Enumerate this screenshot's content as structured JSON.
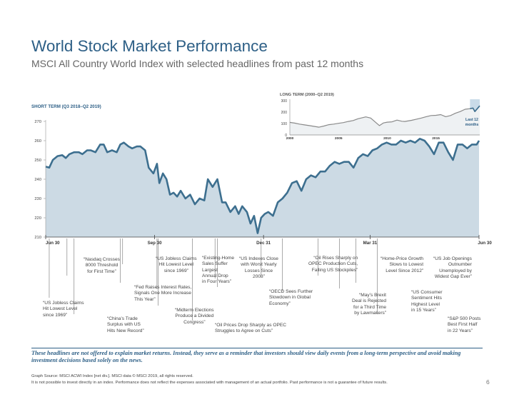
{
  "header": {
    "title": "World Stock Market Performance",
    "subtitle": "MSCI All Country World Index with selected headlines from past 12 months"
  },
  "chart_data": [
    {
      "type": "area",
      "title": "SHORT TERM (Q3 2018–Q2 2019)",
      "x_tick_labels": [
        "Jun 30",
        "Sep 30",
        "Dec 31",
        "Mar 31",
        "Jun 30"
      ],
      "y_ticks": [
        210,
        220,
        230,
        240,
        250,
        260,
        270
      ],
      "ylim": [
        210,
        270
      ],
      "grid": false,
      "series": [
        {
          "name": "MSCI ACWI Index",
          "x_days": [
            0,
            3,
            6,
            10,
            14,
            17,
            20,
            24,
            28,
            31,
            35,
            38,
            42,
            46,
            49,
            52,
            56,
            60,
            63,
            66,
            70,
            73,
            77,
            80,
            84,
            87,
            91,
            94,
            96,
            99,
            102,
            105,
            108,
            111,
            114,
            118,
            122,
            126,
            130,
            134,
            137,
            141,
            145,
            149,
            152,
            156,
            160,
            163,
            166,
            170,
            173,
            176,
            179,
            182,
            185,
            188,
            192,
            196,
            200,
            204,
            208,
            212,
            216,
            220,
            224,
            228,
            232,
            236,
            240,
            244,
            248,
            252,
            256,
            260,
            264,
            268,
            272,
            276,
            280,
            284,
            288,
            292,
            296,
            300,
            304,
            308,
            312,
            316,
            320,
            324,
            328,
            332,
            336,
            340,
            344,
            348,
            352,
            356,
            360,
            364,
            366
          ],
          "values": [
            246.5,
            246,
            250,
            252,
            252.5,
            251,
            253,
            254,
            254,
            253,
            255,
            255,
            254,
            258,
            258,
            254,
            255,
            254,
            258,
            259,
            257,
            256,
            257,
            257,
            255,
            246,
            243,
            248,
            238,
            243,
            240,
            232,
            233,
            231,
            234,
            230,
            232,
            227,
            230,
            229,
            240,
            236,
            240,
            228,
            228,
            223,
            226,
            222,
            226,
            223,
            217,
            221,
            212,
            220,
            222,
            223,
            221,
            228,
            230,
            233,
            238,
            239,
            234,
            240,
            242,
            241,
            244,
            244,
            247,
            249,
            248,
            249,
            249,
            246,
            251,
            253,
            252,
            255,
            256,
            258,
            259,
            258,
            258,
            260,
            259,
            260,
            259,
            261,
            260,
            257,
            253,
            259,
            259,
            254,
            250,
            258,
            258,
            256,
            258,
            258,
            260
          ],
          "color": "#3d6f8f",
          "fill": "#ccdae4"
        }
      ],
      "headlines": [
        {
          "text": "“US Jobless Claims\nHit Lowest Level\nsince 1969”"
        },
        {
          "text": "“Nasdaq Crosses\n8000 Threshold\nfor First Time”"
        },
        {
          "text": "“China’s Trade\nSurplus with US\nHits New Record”"
        },
        {
          "text": "“Fed Raises Interest Rates,\nSignals One More Increase\nThis Year”"
        },
        {
          "text": "“US Jobless Claims\nHit Lowest Level\nsince 1969”"
        },
        {
          "text": "“Midterm Elections\nProduce a Divided\nCongress”"
        },
        {
          "text": "“Existing-Home\nSales Suffer\nLargest\nAnnual Drop\nin Four Years”"
        },
        {
          "text": "“Oil Prices Drop Sharply as OPEC\nStruggles to Agree on Cuts”"
        },
        {
          "text": "“US Indexes Close\nwith Worst Yearly\nLosses Since\n2008”"
        },
        {
          "text": "“OECD Sees Further\nSlowdown in Global\nEconomy”"
        },
        {
          "text": "“Oil Rises Sharply on\nOPEC Production Cuts,\nFalling US Stockpiles”"
        },
        {
          "text": "“May’s Brexit\nDeal is Rejected\nfor a Third Time\nby Lawmakers”"
        },
        {
          "text": "“Home-Price Growth\nSlows to Lowest\nLevel Since 2012”"
        },
        {
          "text": "“US Consumer\nSentiment Hits\nHighest Level\nin 15 Years”"
        },
        {
          "text": "“US Job Openings\nOutnumber\nUnemployed by\nWidest Gap Ever”"
        },
        {
          "text": "“S&P 500 Posts\nBest First Half\nin 22 Years”"
        }
      ]
    },
    {
      "type": "area",
      "title": "LONG TERM (2000–Q2 2019)",
      "x_tick_labels": [
        "2000",
        "2005",
        "2010",
        "2015"
      ],
      "y_ticks": [
        0,
        100,
        200,
        300
      ],
      "ylim": [
        0,
        300
      ],
      "xlim": [
        2000,
        2019.5
      ],
      "grid": false,
      "highlight_label": "Last 12\nmonths",
      "series": [
        {
          "name": "MSCI ACWI Index",
          "x": [
            2000,
            2000.5,
            2001,
            2001.5,
            2002,
            2002.5,
            2003,
            2003.5,
            2004,
            2004.5,
            2005,
            2005.5,
            2006,
            2006.5,
            2007,
            2007.5,
            2007.8,
            2008.3,
            2008.7,
            2009.2,
            2009.6,
            2010,
            2010.5,
            2011,
            2011.5,
            2011.8,
            2012.5,
            2013,
            2013.5,
            2014,
            2014.5,
            2015,
            2015.5,
            2016,
            2016.5,
            2017,
            2017.5,
            2018,
            2018.5,
            2018.8,
            2019,
            2019.5
          ],
          "values": [
            110,
            104,
            95,
            88,
            82,
            75,
            68,
            78,
            90,
            95,
            102,
            108,
            118,
            126,
            142,
            152,
            158,
            148,
            118,
            82,
            105,
            112,
            115,
            130,
            120,
            118,
            128,
            138,
            148,
            160,
            170,
            172,
            178,
            160,
            170,
            190,
            205,
            225,
            230,
            235,
            205,
            255
          ],
          "color": "#8a8a8a",
          "fill": "#cfd6dc"
        }
      ]
    }
  ],
  "footer": {
    "disclaimer": "These headlines are not offered to explain market returns. Instead, they serve as a reminder that investors should view daily events from a long-term perspective and avoid making investment decisions based solely on the news.",
    "source": "Graph Source: MSCI ACWI Index [net div.]. MSCI data © MSCI 2019, all rights reserved.\nIt is not possible to invest directly in an index. Performance does not reflect the expenses associated with management of an actual portfolio. Past performance is not a guarantee of future results.",
    "page_number": "6"
  }
}
